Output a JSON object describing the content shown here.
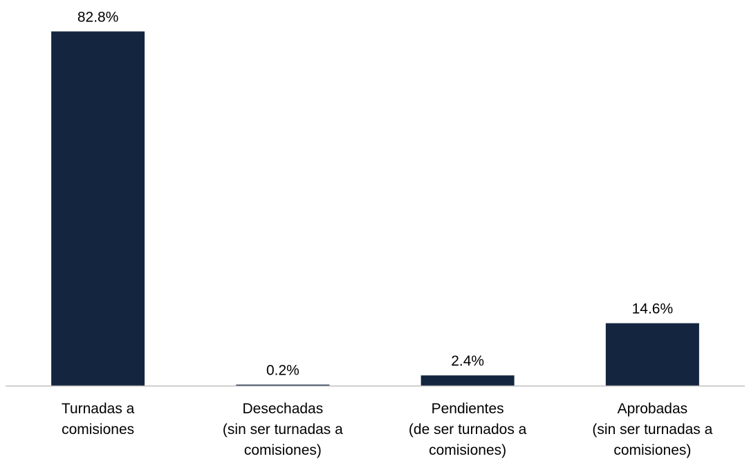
{
  "chart_data": {
    "type": "bar",
    "categories": [
      [
        "Turnadas a",
        "comisiones"
      ],
      [
        "Desechadas",
        "(sin ser turnadas a",
        "comisiones)"
      ],
      [
        "Pendientes",
        "(de ser turnados a",
        "comisiones)"
      ],
      [
        "Aprobadas",
        "(sin ser turnadas a",
        "comisiones)"
      ]
    ],
    "values": [
      82.8,
      0.2,
      2.4,
      14.6
    ],
    "value_labels": [
      "82.8%",
      "0.2%",
      "2.4%",
      "14.6%"
    ],
    "ylim": [
      0,
      100
    ],
    "grid": false,
    "legend": "none",
    "bar_color": "#14253f",
    "axis_color": "#bfbfbf"
  }
}
